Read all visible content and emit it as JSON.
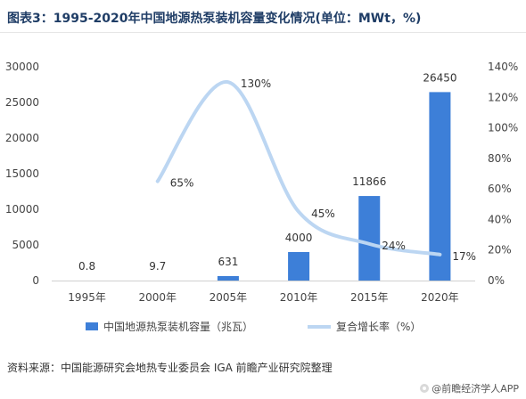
{
  "header": {
    "title": "图表3：1995-2020年中国地源热泵装机容量变化情况(单位：MWt，%)"
  },
  "footer": {
    "source": "资料来源：中国能源研究会地热专业委员会 IGA 前瞻产业研究院整理",
    "brand": "@前瞻经济学人APP"
  },
  "chart_data": {
    "type": "bar",
    "categories": [
      "1995年",
      "2000年",
      "2005年",
      "2010年",
      "2015年",
      "2020年"
    ],
    "series": [
      {
        "name": "中国地源热泵装机容量（兆瓦）",
        "type": "bar",
        "axis": "left",
        "values": [
          0.8,
          9.7,
          631,
          4000,
          11866,
          26450
        ],
        "labels": [
          "0.8",
          "9.7",
          "631",
          "4000",
          "11866",
          "26450"
        ],
        "color": "#3d7fd8"
      },
      {
        "name": "复合增长率（%）",
        "type": "line",
        "axis": "right",
        "smooth": true,
        "values": [
          null,
          65,
          130,
          45,
          24,
          17
        ],
        "labels": [
          "",
          "65%",
          "130%",
          "45%",
          "24%",
          "17%"
        ],
        "color": "#bcd6f2"
      }
    ],
    "y_left": {
      "range": [
        0,
        30000
      ],
      "ticks": [
        "0",
        "5000",
        "10000",
        "15000",
        "20000",
        "25000",
        "30000"
      ]
    },
    "y_right": {
      "range": [
        0,
        140
      ],
      "ticks": [
        "0%",
        "20%",
        "40%",
        "60%",
        "80%",
        "100%",
        "120%",
        "140%"
      ]
    },
    "grid": false,
    "legend_position": "bottom"
  }
}
